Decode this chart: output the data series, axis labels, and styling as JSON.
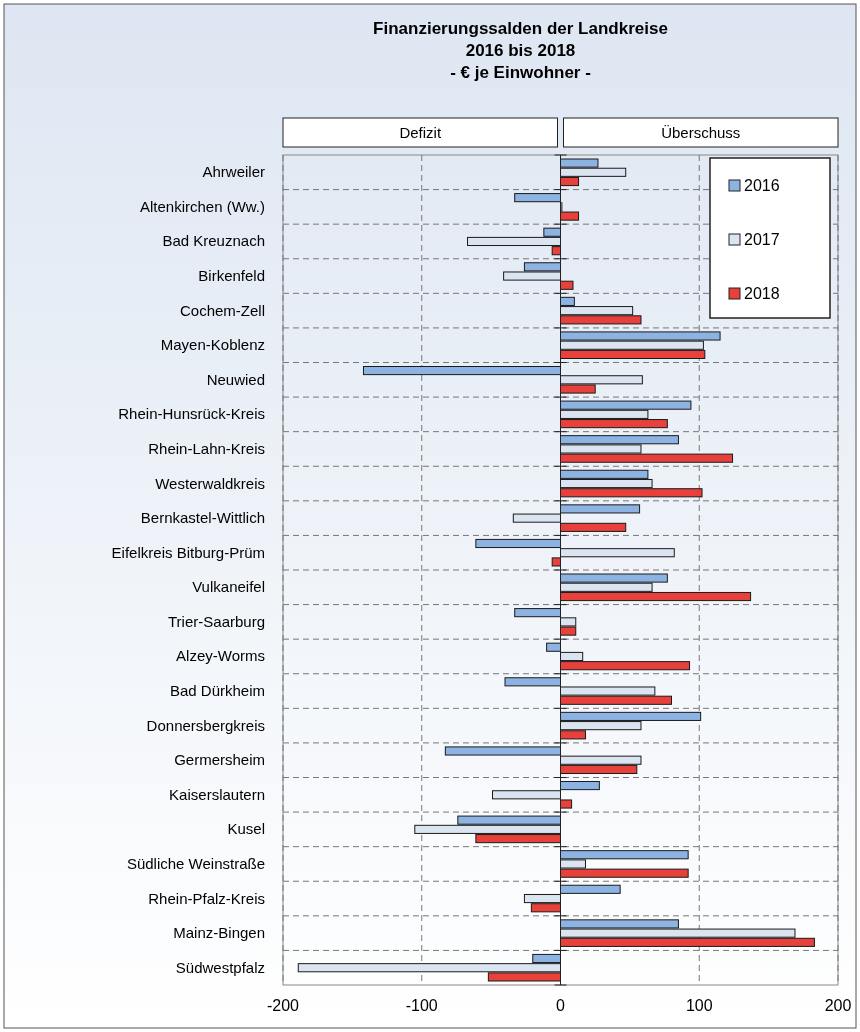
{
  "chart_data": {
    "type": "bar",
    "orientation": "horizontal",
    "title": "Finanzierungssalden der Landkreise\n2016 bis 2018",
    "subtitle": "- € je Einwohner -",
    "annotations": [
      "Defizit",
      "Überschuss"
    ],
    "categories": [
      "Ahrweiler",
      "Altenkirchen (Ww.)",
      "Bad Kreuznach",
      "Birkenfeld",
      "Cochem-Zell",
      "Mayen-Koblenz",
      "Neuwied",
      "Rhein-Hunsrück-Kreis",
      "Rhein-Lahn-Kreis",
      "Westerwaldkreis",
      "Bernkastel-Wittlich",
      "Eifelkreis Bitburg-Prüm",
      "Vulkaneifel",
      "Trier-Saarburg",
      "Alzey-Worms",
      "Bad Dürkheim",
      "Donnersbergkreis",
      "Germersheim",
      "Kaiserslautern",
      "Kusel",
      "Südliche Weinstraße",
      "Rhein-Pfalz-Kreis",
      "Mainz-Bingen",
      "Südwestpfalz"
    ],
    "series": [
      {
        "name": "2016",
        "color": "#8db3e2",
        "values": [
          27,
          -33,
          -12,
          -26,
          10,
          115,
          -142,
          94,
          85,
          63,
          57,
          -61,
          77,
          -33,
          -10,
          -40,
          101,
          -83,
          28,
          -74,
          92,
          43,
          85,
          -20
        ]
      },
      {
        "name": "2017",
        "color": "#dbe5f1",
        "values": [
          47,
          1,
          -67,
          -41,
          52,
          103,
          59,
          63,
          58,
          66,
          -34,
          82,
          66,
          11,
          16,
          68,
          58,
          58,
          -49,
          -105,
          18,
          -26,
          169,
          -189
        ]
      },
      {
        "name": "2018",
        "color": "#e8413c",
        "values": [
          13,
          13,
          -6,
          9,
          58,
          104,
          25,
          77,
          124,
          102,
          47,
          -6,
          137,
          11,
          93,
          80,
          18,
          55,
          8,
          -61,
          92,
          -21,
          183,
          -52
        ]
      }
    ],
    "xlim": [
      -200,
      200
    ],
    "xticks": [
      -200,
      -100,
      0,
      100,
      200
    ],
    "grid": true,
    "legend": "top right"
  }
}
